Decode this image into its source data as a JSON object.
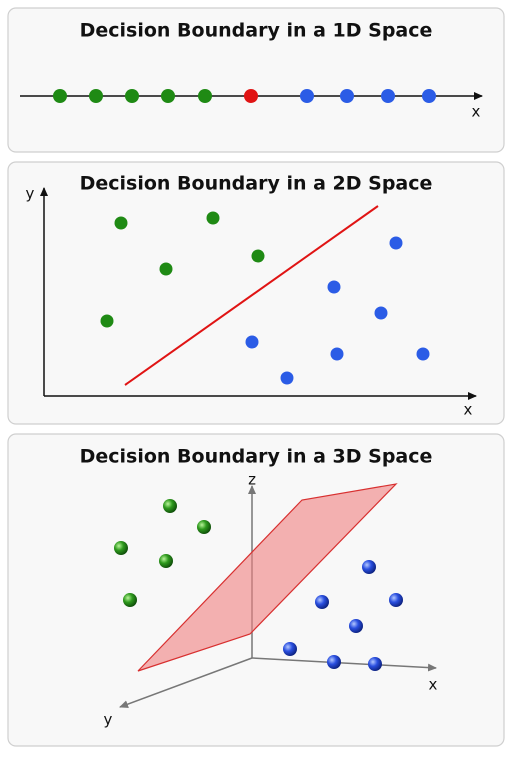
{
  "panels": [
    {
      "title": "Decision Boundary in a 1D Space",
      "x_label": "x"
    },
    {
      "title": "Decision Boundary in a 2D Space",
      "x_label": "x",
      "y_label": "y"
    },
    {
      "title": "Decision Boundary in a 3D Space",
      "x_label": "x",
      "y_label": "y",
      "z_label": "z"
    }
  ]
}
